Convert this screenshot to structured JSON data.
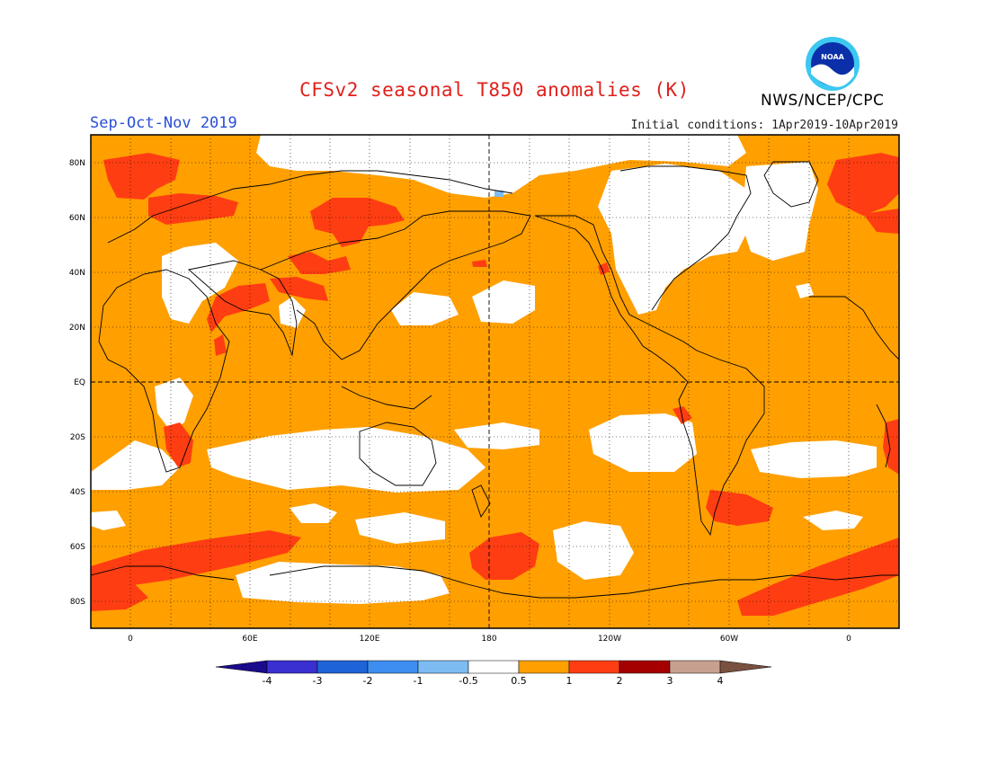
{
  "title": "CFSv2 seasonal T850 anomalies (K)",
  "agency": "NWS/NCEP/CPC",
  "logo_text": "NOAA",
  "season": "Sep-Oct-Nov 2019",
  "initial_conditions": "Initial conditions: 1Apr2019-10Apr2019",
  "lat_labels": [
    "80N",
    "60N",
    "40N",
    "20N",
    "EQ",
    "20S",
    "40S",
    "60S",
    "80S"
  ],
  "lon_labels": [
    "0",
    "60E",
    "120E",
    "180",
    "120W",
    "60W",
    "0"
  ],
  "colorbar": {
    "labels": [
      "-4",
      "-3",
      "-2",
      "-1",
      "-0.5",
      "0.5",
      "1",
      "2",
      "3",
      "4"
    ],
    "colors": [
      "#1a0a8c",
      "#3a2fd0",
      "#1f63d8",
      "#3d8ef0",
      "#7dbcf2",
      "#ffffff",
      "#ff9f00",
      "#ff3d12",
      "#a50000",
      "#c8a090",
      "#7a5040"
    ]
  },
  "colors": {
    "title": "#e0201b",
    "season": "#2a4fd6",
    "anomaly_0_5_to_1": "#ff9f00",
    "anomaly_1_to_2": "#ff3d12",
    "neutral": "#ffffff"
  }
}
